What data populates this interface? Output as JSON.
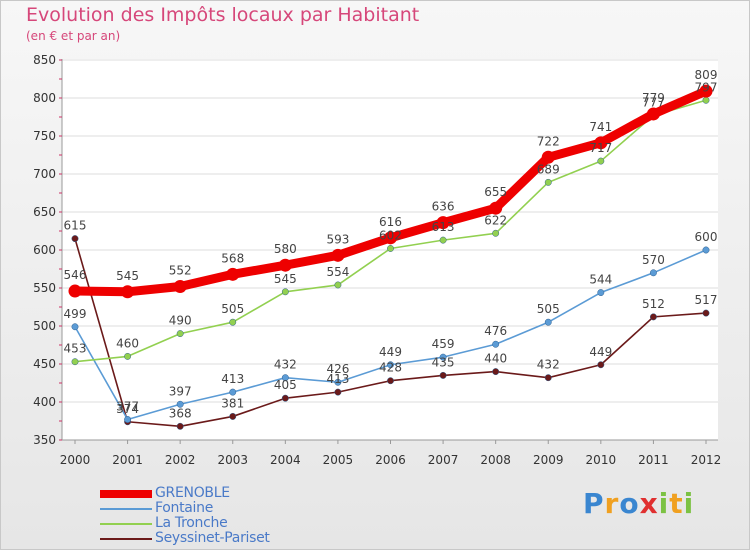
{
  "title": "Evolution des Impôts locaux par Habitant",
  "subtitle": "(en € et par an)",
  "logo": {
    "p": "P",
    "r": "r",
    "o": "o",
    "x": "x",
    "i1": "i",
    "t": "t",
    "i2": "i"
  },
  "chart_data": {
    "type": "line",
    "categories": [
      "2000",
      "2001",
      "2002",
      "2003",
      "2004",
      "2005",
      "2006",
      "2007",
      "2008",
      "2009",
      "2010",
      "2011",
      "2012"
    ],
    "yticks": [
      350,
      400,
      450,
      500,
      550,
      600,
      650,
      700,
      750,
      800,
      850
    ],
    "ylim": [
      350,
      850
    ],
    "series": [
      {
        "name": "GRENOBLE",
        "color": "#ee0000",
        "values": [
          546,
          545,
          552,
          568,
          580,
          593,
          616,
          636,
          655,
          722,
          741,
          779,
          809
        ]
      },
      {
        "name": "Fontaine",
        "color": "#5b9bd5",
        "values": [
          499,
          377,
          397,
          413,
          432,
          426,
          449,
          459,
          476,
          505,
          544,
          570,
          600
        ]
      },
      {
        "name": "La Tronche",
        "color": "#92d050",
        "values": [
          453,
          460,
          490,
          505,
          545,
          554,
          602,
          613,
          622,
          689,
          717,
          777,
          797
        ]
      },
      {
        "name": "Seyssinet-Pariset",
        "color": "#6b1a1a",
        "values": [
          615,
          374,
          368,
          381,
          405,
          413,
          428,
          435,
          440,
          432,
          449,
          512,
          517
        ]
      }
    ]
  }
}
